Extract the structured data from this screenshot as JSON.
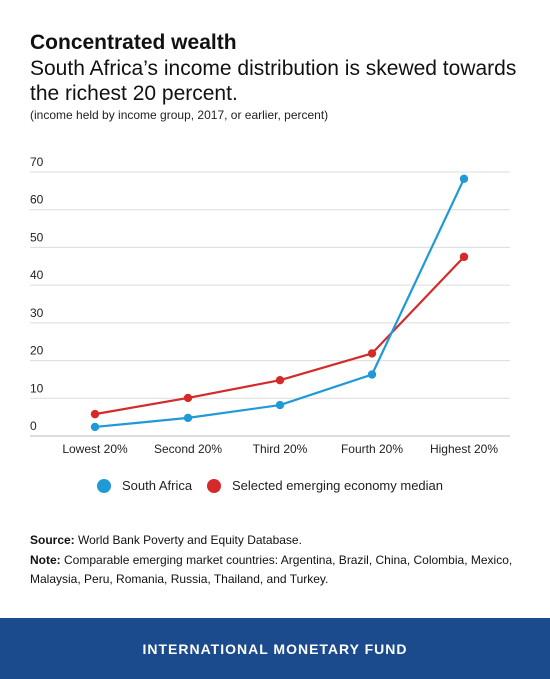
{
  "header": {
    "title": "Concentrated wealth",
    "subtitle": "South Africa’s income distribution is skewed towards the richest 20 percent.",
    "units_note": "(income held by income group, 2017, or earlier, percent)"
  },
  "chart_data": {
    "type": "line",
    "categories": [
      "Lowest 20%",
      "Second 20%",
      "Third 20%",
      "Fourth 20%",
      "Highest 20%"
    ],
    "series": [
      {
        "name": "South Africa",
        "color": "#1f9ad6",
        "values": [
          2.4,
          4.8,
          8.2,
          16.3,
          68.2
        ]
      },
      {
        "name": "Selected emerging economy median",
        "color": "#d42a2a",
        "values": [
          5.8,
          10.1,
          14.8,
          21.9,
          47.5
        ]
      }
    ],
    "yticks": [
      0,
      10,
      20,
      30,
      40,
      50,
      60,
      70
    ],
    "ylim": [
      0,
      70
    ],
    "grid": true,
    "legend_position": "bottom"
  },
  "footnotes": {
    "source_label": "Source:",
    "source_text": " World Bank Poverty and Equity Database.",
    "note_label": "Note:",
    "note_text": " Comparable emerging market countries: Argentina, Brazil, China, Colombia, Mexico, Malaysia, Peru, Romania, Russia, Thailand, and Turkey."
  },
  "footer": {
    "text": "INTERNATIONAL MONETARY FUND"
  }
}
